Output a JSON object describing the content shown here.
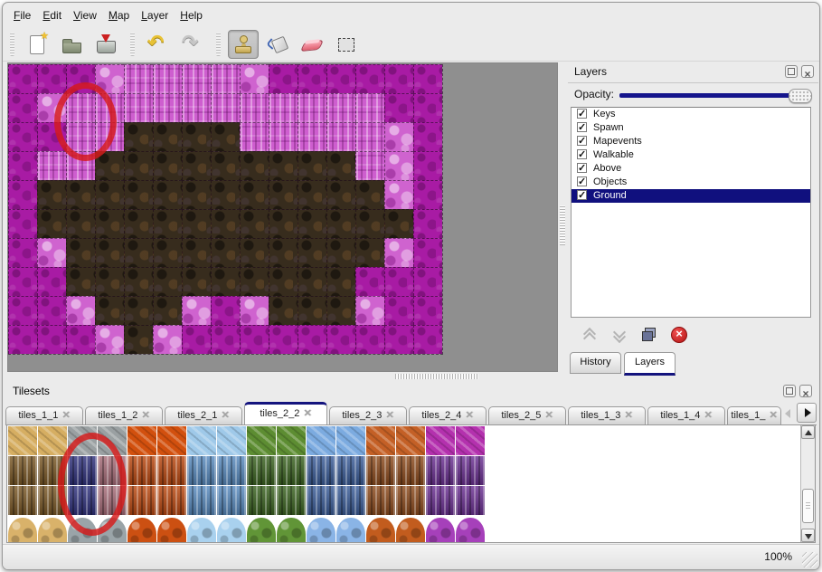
{
  "window": {
    "menu": [
      "File",
      "Edit",
      "View",
      "Map",
      "Layer",
      "Help"
    ],
    "toolbar": {
      "groups": [
        {
          "buttons": [
            {
              "icon": "new-file"
            },
            {
              "icon": "open-file"
            },
            {
              "icon": "save-file"
            }
          ]
        },
        {
          "buttons": [
            {
              "icon": "undo"
            },
            {
              "icon": "redo"
            }
          ]
        },
        {
          "buttons": [
            {
              "icon": "stamp-tool",
              "active": true
            },
            {
              "icon": "fill-tool"
            },
            {
              "icon": "eraser-tool"
            },
            {
              "icon": "select-tool"
            }
          ]
        }
      ]
    },
    "status": {
      "zoom": "100%"
    }
  },
  "map_view": {
    "tile_size": 32,
    "columns": 15,
    "rows": 10,
    "tile_legend": {
      "M": "magenta-ground",
      "W": "pink-wall",
      "R": "pink-rock",
      "D": "dark-dirt"
    },
    "grid": [
      "MMMRWWWWRMMMMMM",
      "MRWWWWWWWWWWWMM",
      "MMWWDDDDWWWWWRM",
      "MWWDDDDDDDDDWRM",
      "MDDDDDDDDDDDDRM",
      "MDDDDDDDDDDDDDM",
      "MRDDDDDDDDDDDRM",
      "MMDDDDDDDDDDMMM",
      "MMRDDDRMRDDDRMM",
      "MMMRDRMMMMMMMMM"
    ],
    "annotation": {
      "shape": "ellipse",
      "color": "#d61a1a"
    }
  },
  "layers_panel": {
    "title": "Layers",
    "opacity_label": "Opacity:",
    "opacity_percent": 100,
    "layers": [
      {
        "name": "Keys",
        "visible": true
      },
      {
        "name": "Spawn",
        "visible": true
      },
      {
        "name": "Mapevents",
        "visible": true
      },
      {
        "name": "Walkable",
        "visible": true
      },
      {
        "name": "Above",
        "visible": true
      },
      {
        "name": "Objects",
        "visible": true
      },
      {
        "name": "Ground",
        "visible": true,
        "selected": true
      }
    ],
    "buttons": [
      "move-layer-up",
      "move-layer-down",
      "duplicate-layer",
      "delete-layer"
    ],
    "bottom_tabs": [
      {
        "label": "History",
        "active": false
      },
      {
        "label": "Layers",
        "active": true
      }
    ]
  },
  "tilesets_panel": {
    "title": "Tilesets",
    "tabs": [
      {
        "label": "tiles_1_1",
        "active": false
      },
      {
        "label": "tiles_1_2",
        "active": false
      },
      {
        "label": "tiles_2_1",
        "active": false
      },
      {
        "label": "tiles_2_2",
        "active": true
      },
      {
        "label": "tiles_2_3",
        "active": false
      },
      {
        "label": "tiles_2_4",
        "active": false
      },
      {
        "label": "tiles_2_5",
        "active": false
      },
      {
        "label": "tiles_1_3",
        "active": false
      },
      {
        "label": "tiles_1_4",
        "active": false
      },
      {
        "label": "tiles_1_",
        "active": false,
        "truncated": true
      }
    ],
    "palette": {
      "rows": [
        "surface",
        "wall",
        "wall",
        "boulder"
      ],
      "columns": [
        {
          "top": "#d6ae62",
          "wall": "#7c5a28",
          "boulder": "#d9b26a"
        },
        {
          "top": "#d6ae62",
          "wall": "#7c5a28",
          "boulder": "#d9b26a"
        },
        {
          "top": "#9aa0a2",
          "wall": "#31337e",
          "boulder": "#9aa4a8"
        },
        {
          "top": "#9aa0a2",
          "wall": "#a86e7a",
          "boulder": "#9aa4a8"
        },
        {
          "top": "#d2500e",
          "wall": "#bc4a12",
          "boulder": "#cc5012"
        },
        {
          "top": "#d2500e",
          "wall": "#bc4a12",
          "boulder": "#cc5012"
        },
        {
          "top": "#9fc9e9",
          "wall": "#5a8cc0",
          "boulder": "#a9d1ee"
        },
        {
          "top": "#9fc9e9",
          "wall": "#5a8cc0",
          "boulder": "#a9d1ee"
        },
        {
          "top": "#5d8d32",
          "wall": "#3c6422",
          "boulder": "#619537"
        },
        {
          "top": "#5d8d32",
          "wall": "#3c6422",
          "boulder": "#619537"
        },
        {
          "top": "#7cabe0",
          "wall": "#3c5e9a",
          "boulder": "#8ab4e6"
        },
        {
          "top": "#7cabe0",
          "wall": "#3c5e9a",
          "boulder": "#8ab4e6"
        },
        {
          "top": "#c46026",
          "wall": "#8e4c1e",
          "boulder": "#c25c1e"
        },
        {
          "top": "#c46026",
          "wall": "#8e4c1e",
          "boulder": "#c25c1e"
        },
        {
          "top": "#b431ae",
          "wall": "#6c3193",
          "boulder": "#a640ba"
        },
        {
          "top": "#b431ae",
          "wall": "#6c3193",
          "boulder": "#a640ba"
        }
      ],
      "selected_column": 2,
      "annotation": {
        "shape": "ellipse",
        "color": "#d61a1a"
      }
    }
  }
}
